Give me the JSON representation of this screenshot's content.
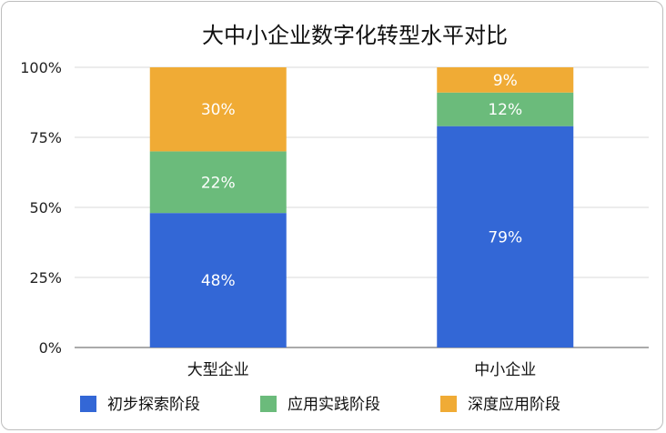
{
  "chart_data": {
    "type": "bar",
    "stacked": true,
    "title": "大中小企业数字化转型水平对比",
    "categories": [
      "大型企业",
      "中小企业"
    ],
    "series": [
      {
        "name": "初步探索阶段",
        "values": [
          48,
          79
        ],
        "color": "#3367d6"
      },
      {
        "name": "应用实践阶段",
        "values": [
          22,
          12
        ],
        "color": "#6bbb7b"
      },
      {
        "name": "深度应用阶段",
        "values": [
          30,
          9
        ],
        "color": "#f0ab35"
      }
    ],
    "y_ticks": [
      "0%",
      "25%",
      "50%",
      "75%",
      "100%"
    ],
    "ylim": [
      0,
      100
    ],
    "value_suffix": "%",
    "grid": true,
    "legend_position": "bottom"
  }
}
